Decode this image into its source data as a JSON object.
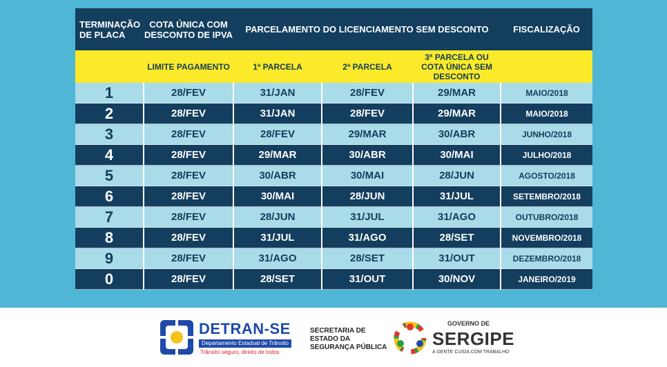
{
  "header": {
    "col1": "Terminação de Placa",
    "col2": "Cota única com desconto de IPVA",
    "col3": "Parcelamento do Licenciamento sem desconto",
    "col6": "Fiscalização"
  },
  "subheader": {
    "limite": "Limite Pagamento",
    "p1": "1ª Parcela",
    "p2": "2ª Parcela",
    "p3": "3ª Parcela ou Cota Única sem Desconto"
  },
  "rows": [
    {
      "placa": "1",
      "limite": "28/FEV",
      "p1": "31/JAN",
      "p2": "28/FEV",
      "p3": "29/MAR",
      "fiscalizacao": "MAIO/2018"
    },
    {
      "placa": "2",
      "limite": "28/FEV",
      "p1": "31/JAN",
      "p2": "28/FEV",
      "p3": "29/MAR",
      "fiscalizacao": "MAIO/2018"
    },
    {
      "placa": "3",
      "limite": "28/FEV",
      "p1": "28/FEV",
      "p2": "29/MAR",
      "p3": "30/ABR",
      "fiscalizacao": "JUNHO/2018"
    },
    {
      "placa": "4",
      "limite": "28/FEV",
      "p1": "29/MAR",
      "p2": "30/ABR",
      "p3": "30/MAI",
      "fiscalizacao": "JULHO/2018"
    },
    {
      "placa": "5",
      "limite": "28/FEV",
      "p1": "30/ABR",
      "p2": "30/MAI",
      "p3": "28/JUN",
      "fiscalizacao": "AGOSTO/2018"
    },
    {
      "placa": "6",
      "limite": "28/FEV",
      "p1": "30/MAI",
      "p2": "28/JUN",
      "p3": "31/JUL",
      "fiscalizacao": "SETEMBRO/2018"
    },
    {
      "placa": "7",
      "limite": "28/FEV",
      "p1": "28/JUN",
      "p2": "31/JUL",
      "p3": "31/AGO",
      "fiscalizacao": "OUTUBRO/2018"
    },
    {
      "placa": "8",
      "limite": "28/FEV",
      "p1": "31/JUL",
      "p2": "31/AGO",
      "p3": "28/SET",
      "fiscalizacao": "NOVEMBRO/2018"
    },
    {
      "placa": "9",
      "limite": "28/FEV",
      "p1": "31/AGO",
      "p2": "28/SET",
      "p3": "31/OUT",
      "fiscalizacao": "DEZEMBRO/2018"
    },
    {
      "placa": "0",
      "limite": "28/FEV",
      "p1": "28/SET",
      "p2": "31/OUT",
      "p3": "30/NOV",
      "fiscalizacao": "JANEIRO/2019"
    }
  ],
  "footer": {
    "detran_name": "DETRAN-SE",
    "detran_subtitle": "Departamento Estadual de Trânsito",
    "detran_slogan": "Trânsito seguro, direito de todos",
    "ssp": "Secretaria de Estado da Segurança Pública",
    "gov_small": "GOVERNO DE",
    "gov_big": "SERGIPE",
    "gov_slogan": "A gente cuida com trabalho"
  },
  "colors": {
    "header_bg": "#143e5e",
    "highlight_bg": "#fbea29",
    "row_light": "#a9dbe9",
    "row_dark": "#143e5e",
    "page_bg": "#4fb6d6"
  }
}
